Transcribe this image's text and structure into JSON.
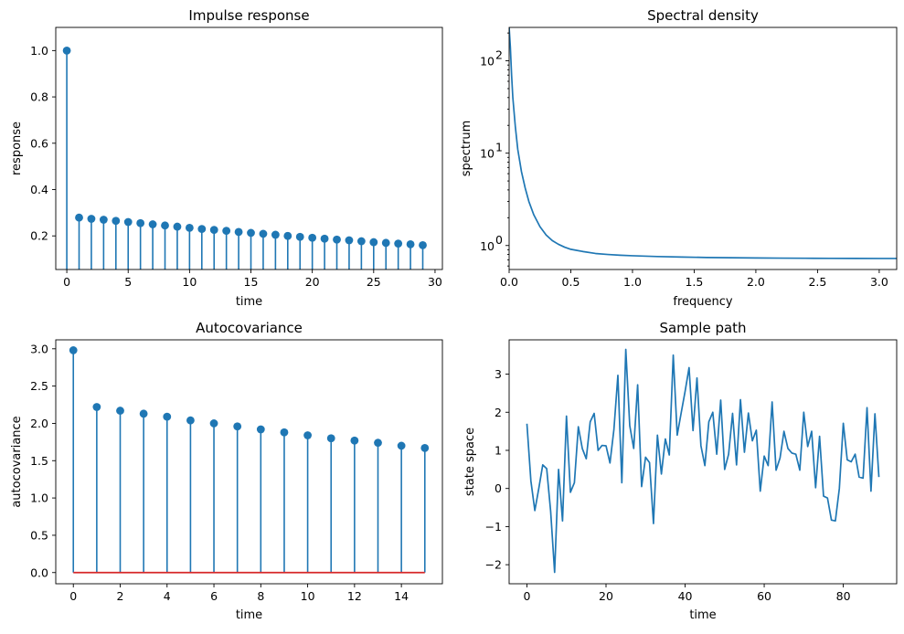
{
  "chart_data": [
    {
      "id": "impulse",
      "type": "stem",
      "title": "Impulse response",
      "xlabel": "time",
      "ylabel": "response",
      "xlim": [
        -0.9,
        30.6
      ],
      "ylim": [
        0.055,
        1.1
      ],
      "xticks": [
        0,
        5,
        10,
        15,
        20,
        25,
        30
      ],
      "xtick_labels": [
        "0",
        "5",
        "10",
        "15",
        "20",
        "25",
        "30"
      ],
      "yticks": [
        0.2,
        0.4,
        0.6,
        0.8,
        1.0
      ],
      "ytick_labels": [
        "0.2",
        "0.4",
        "0.6",
        "0.8",
        "1.0"
      ],
      "x": [
        0,
        1,
        2,
        3,
        4,
        5,
        6,
        7,
        8,
        9,
        10,
        11,
        12,
        13,
        14,
        15,
        16,
        17,
        18,
        19,
        20,
        21,
        22,
        23,
        24,
        25,
        26,
        27,
        28,
        29
      ],
      "values": [
        1.0,
        0.279,
        0.274,
        0.27,
        0.265,
        0.26,
        0.255,
        0.25,
        0.245,
        0.24,
        0.235,
        0.23,
        0.226,
        0.222,
        0.217,
        0.213,
        0.209,
        0.205,
        0.2,
        0.196,
        0.192,
        0.188,
        0.184,
        0.181,
        0.177,
        0.173,
        0.17,
        0.167,
        0.164,
        0.16
      ],
      "baseline": 0
    },
    {
      "id": "spectral",
      "type": "line",
      "yscale": "log",
      "title": "Spectral density",
      "xlabel": "frequency",
      "ylabel": "spectrum",
      "xlim": [
        0,
        3.1416
      ],
      "ylim": [
        0.55,
        230
      ],
      "xticks": [
        0,
        0.5,
        1.0,
        1.5,
        2.0,
        2.5,
        3.0
      ],
      "xtick_labels": [
        "0.0",
        "0.5",
        "1.0",
        "1.5",
        "2.0",
        "2.5",
        "3.0"
      ],
      "yticks": [
        1,
        10,
        100
      ],
      "ytick_labels": [
        "10",
        "10",
        "10"
      ],
      "ytick_exponents": [
        "0",
        "1",
        "2"
      ],
      "x": [
        0,
        0.01,
        0.02,
        0.03,
        0.05,
        0.07,
        0.1,
        0.13,
        0.16,
        0.2,
        0.25,
        0.3,
        0.35,
        0.4,
        0.45,
        0.5,
        0.6,
        0.7,
        0.8,
        0.9,
        1.0,
        1.2,
        1.4,
        1.6,
        1.8,
        2.0,
        2.2,
        2.4,
        2.6,
        2.8,
        3.0,
        3.1416
      ],
      "values": [
        230,
        140,
        70,
        40,
        19.5,
        11,
        6.3,
        4.2,
        3.0,
        2.15,
        1.6,
        1.3,
        1.13,
        1.03,
        0.96,
        0.91,
        0.86,
        0.82,
        0.8,
        0.785,
        0.775,
        0.76,
        0.75,
        0.742,
        0.737,
        0.733,
        0.73,
        0.728,
        0.726,
        0.725,
        0.724,
        0.724
      ]
    },
    {
      "id": "autocov",
      "type": "stem",
      "title": "Autocovariance",
      "xlabel": "time",
      "ylabel": "autocovariance",
      "xlim": [
        -0.75,
        15.75
      ],
      "ylim": [
        -0.15,
        3.12
      ],
      "xticks": [
        0,
        2,
        4,
        6,
        8,
        10,
        12,
        14
      ],
      "xtick_labels": [
        "0",
        "2",
        "4",
        "6",
        "8",
        "10",
        "12",
        "14"
      ],
      "yticks": [
        0,
        0.5,
        1.0,
        1.5,
        2.0,
        2.5,
        3.0
      ],
      "ytick_labels": [
        "0.0",
        "0.5",
        "1.0",
        "1.5",
        "2.0",
        "2.5",
        "3.0"
      ],
      "x": [
        0,
        1,
        2,
        3,
        4,
        5,
        6,
        7,
        8,
        9,
        10,
        11,
        12,
        13,
        14,
        15
      ],
      "values": [
        2.98,
        2.22,
        2.17,
        2.13,
        2.09,
        2.04,
        2.0,
        1.96,
        1.92,
        1.88,
        1.84,
        1.8,
        1.77,
        1.74,
        1.7,
        1.67
      ],
      "baseline": 0
    },
    {
      "id": "sample",
      "type": "line",
      "title": "Sample path",
      "xlabel": "time",
      "ylabel": "state space",
      "xlim": [
        -4.5,
        93.5
      ],
      "ylim": [
        -2.5,
        3.9
      ],
      "xticks": [
        0,
        20,
        40,
        60,
        80
      ],
      "xtick_labels": [
        "0",
        "20",
        "40",
        "60",
        "80"
      ],
      "yticks": [
        -2,
        -1,
        0,
        1,
        2,
        3
      ],
      "ytick_labels": [
        "−2",
        "−1",
        "0",
        "1",
        "2",
        "3"
      ],
      "values": [
        1.7,
        0.2,
        -0.58,
        0.0,
        0.62,
        0.52,
        -0.6,
        -2.2,
        0.5,
        -0.85,
        1.9,
        -0.1,
        0.15,
        1.62,
        1.05,
        0.78,
        1.75,
        1.97,
        1.0,
        1.13,
        1.12,
        0.67,
        1.55,
        2.97,
        0.15,
        3.65,
        1.65,
        1.05,
        2.72,
        0.05,
        0.82,
        0.68,
        -0.92,
        1.4,
        0.38,
        1.3,
        0.88,
        3.5,
        1.4,
        1.98,
        2.55,
        3.17,
        1.52,
        2.9,
        1.12,
        0.6,
        1.75,
        2.0,
        0.9,
        2.32,
        0.5,
        0.9,
        1.97,
        0.62,
        2.33,
        0.95,
        1.98,
        1.25,
        1.53,
        -0.07,
        0.85,
        0.6,
        2.27,
        0.48,
        0.8,
        1.5,
        1.05,
        0.93,
        0.9,
        0.48,
        2.0,
        1.1,
        1.5,
        0.02,
        1.37,
        -0.2,
        -0.25,
        -0.83,
        -0.85,
        0.0,
        1.71,
        0.75,
        0.7,
        0.9,
        0.3,
        0.27,
        2.12,
        -0.07,
        1.96,
        0.3
      ]
    }
  ]
}
